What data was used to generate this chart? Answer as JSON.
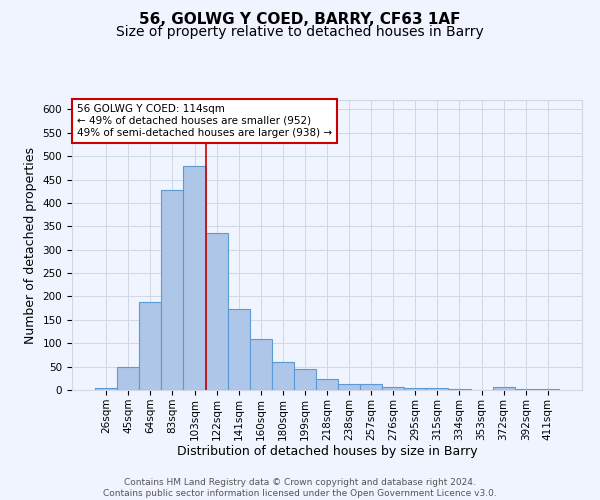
{
  "title1": "56, GOLWG Y COED, BARRY, CF63 1AF",
  "title2": "Size of property relative to detached houses in Barry",
  "xlabel": "Distribution of detached houses by size in Barry",
  "ylabel": "Number of detached properties",
  "categories": [
    "26sqm",
    "45sqm",
    "64sqm",
    "83sqm",
    "103sqm",
    "122sqm",
    "141sqm",
    "160sqm",
    "180sqm",
    "199sqm",
    "218sqm",
    "238sqm",
    "257sqm",
    "276sqm",
    "295sqm",
    "315sqm",
    "334sqm",
    "353sqm",
    "372sqm",
    "392sqm",
    "411sqm"
  ],
  "values": [
    5,
    50,
    188,
    428,
    478,
    335,
    173,
    108,
    60,
    44,
    23,
    12,
    13,
    6,
    5,
    4,
    2,
    1,
    6,
    2,
    3
  ],
  "bar_color": "#aec6e8",
  "bar_edge_color": "#5b9bd5",
  "annotation_box_text": "56 GOLWG Y COED: 114sqm\n← 49% of detached houses are smaller (952)\n49% of semi-detached houses are larger (938) →",
  "annotation_box_color": "#ffffff",
  "annotation_box_edge_color": "#cc0000",
  "vline_x_index": 4.5,
  "vline_color": "#cc0000",
  "grid_color": "#d0d8e8",
  "background_color": "#f0f4ff",
  "footer_text": "Contains HM Land Registry data © Crown copyright and database right 2024.\nContains public sector information licensed under the Open Government Licence v3.0.",
  "ylim": [
    0,
    620
  ],
  "title_fontsize": 11,
  "subtitle_fontsize": 10,
  "axis_label_fontsize": 9,
  "tick_fontsize": 7.5,
  "footer_fontsize": 6.5,
  "annotation_fontsize": 7.5
}
